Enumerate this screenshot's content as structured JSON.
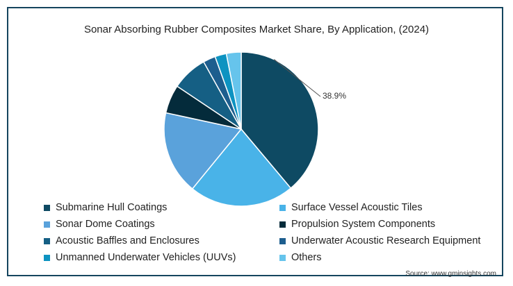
{
  "colors": {
    "border": "#14455e"
  },
  "chart_data": {
    "type": "pie",
    "title": "Sonar Absorbing Rubber Composites Market Share, By Application, (2024)",
    "slices": [
      {
        "name": "Submarine Hull Coatings",
        "value": 38.9,
        "color": "#0e4a63",
        "label": "38.9%"
      },
      {
        "name": "Surface Vessel Acoustic Tiles",
        "value": 22.0,
        "color": "#49b3e8",
        "label": ""
      },
      {
        "name": "Sonar Dome Coatings",
        "value": 17.5,
        "color": "#5aa2db",
        "label": ""
      },
      {
        "name": "Propulsion System Components",
        "value": 6.0,
        "color": "#042b3b",
        "label": ""
      },
      {
        "name": "Acoustic Baffles and Enclosures",
        "value": 7.5,
        "color": "#155f84",
        "label": ""
      },
      {
        "name": "Underwater Acoustic Research Equipment",
        "value": 2.6,
        "color": "#1d5e8e",
        "label": ""
      },
      {
        "name": "Unmanned Underwater Vehicles (UUVs)",
        "value": 2.4,
        "color": "#0d93c1",
        "label": ""
      },
      {
        "name": "Others",
        "value": 3.1,
        "color": "#66c4ec",
        "label": ""
      }
    ],
    "legend_placement": "bottom"
  },
  "legend": [
    {
      "label": "Submarine Hull Coatings",
      "color": "#0e4a63"
    },
    {
      "label": "Surface Vessel Acoustic Tiles",
      "color": "#49b3e8"
    },
    {
      "label": "Sonar Dome Coatings",
      "color": "#5aa2db"
    },
    {
      "label": "Propulsion System Components",
      "color": "#042b3b"
    },
    {
      "label": "Acoustic Baffles and Enclosures",
      "color": "#155f84"
    },
    {
      "label": "Underwater Acoustic Research Equipment",
      "color": "#1d5e8e"
    },
    {
      "label": "Unmanned Underwater Vehicles (UUVs)",
      "color": "#0d93c1"
    },
    {
      "label": "Others",
      "color": "#66c4ec"
    }
  ],
  "source": "Source: www.gminsights.com"
}
